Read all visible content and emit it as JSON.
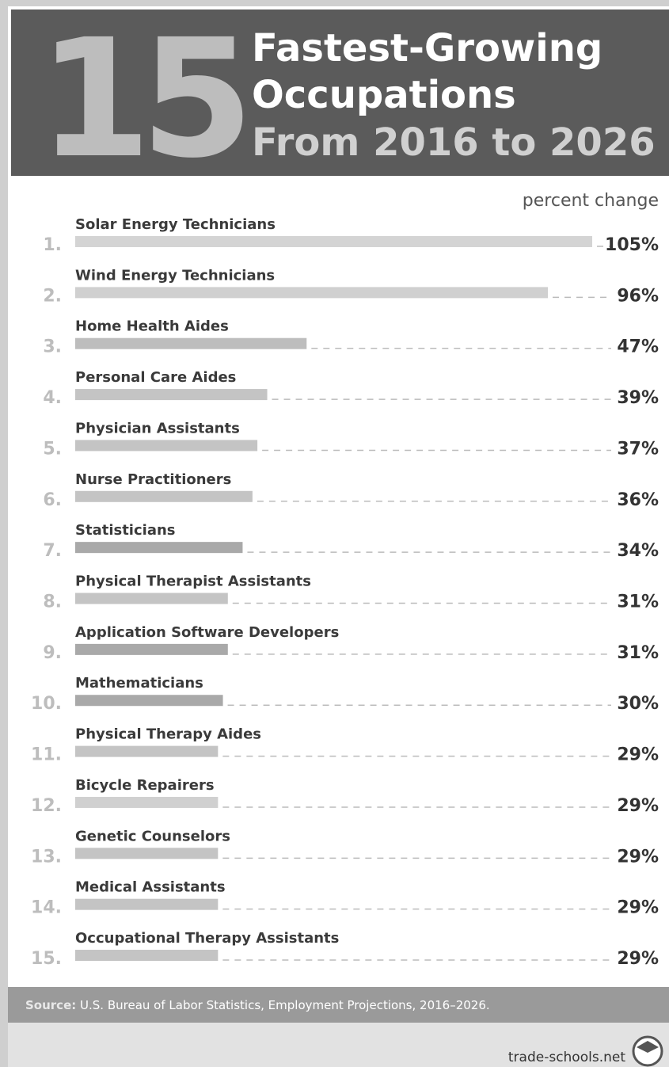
{
  "chart_data": {
    "type": "bar",
    "orientation": "horizontal",
    "header_number": "15",
    "title": [
      "Fastest-Growing",
      "Occupations"
    ],
    "subtitle": "From 2016 to 2026",
    "value_axis_label": "percent change",
    "ranks": [
      "1.",
      "2.",
      "3.",
      "4.",
      "5.",
      "6.",
      "7.",
      "8.",
      "9.",
      "10.",
      "11.",
      "12.",
      "13.",
      "14.",
      "15."
    ],
    "categories": [
      "Solar Energy Technicians",
      "Wind Energy Technicians",
      "Home Health Aides",
      "Personal Care Aides",
      "Physician Assistants",
      "Nurse Practitioners",
      "Statisticians",
      "Physical Therapist Assistants",
      "Application Software Developers",
      "Mathematicians",
      "Physical Therapy Aides",
      "Bicycle Repairers",
      "Genetic Counselors",
      "Medical Assistants",
      "Occupational Therapy Assistants"
    ],
    "values": [
      105,
      96,
      47,
      39,
      37,
      36,
      34,
      31,
      31,
      30,
      29,
      29,
      29,
      29,
      29
    ],
    "value_labels": [
      "105%",
      "96%",
      "47%",
      "39%",
      "37%",
      "36%",
      "34%",
      "31%",
      "31%",
      "30%",
      "29%",
      "29%",
      "29%",
      "29%",
      "29%"
    ],
    "colors": [
      "#d4d4d4",
      "#d0d0d0",
      "#bdbdbd",
      "#c4c4c4",
      "#c4c4c4",
      "#c4c4c4",
      "#a9a9a9",
      "#c4c4c4",
      "#a9a9a9",
      "#a9a9a9",
      "#c4c4c4",
      "#d0d0d0",
      "#c4c4c4",
      "#c4c4c4",
      "#c4c4c4"
    ],
    "source_label": "Source:",
    "source": "U.S. Bureau of Labor Statistics, Employment Projections, 2016–2026.",
    "brand": "trade-schools.net"
  }
}
